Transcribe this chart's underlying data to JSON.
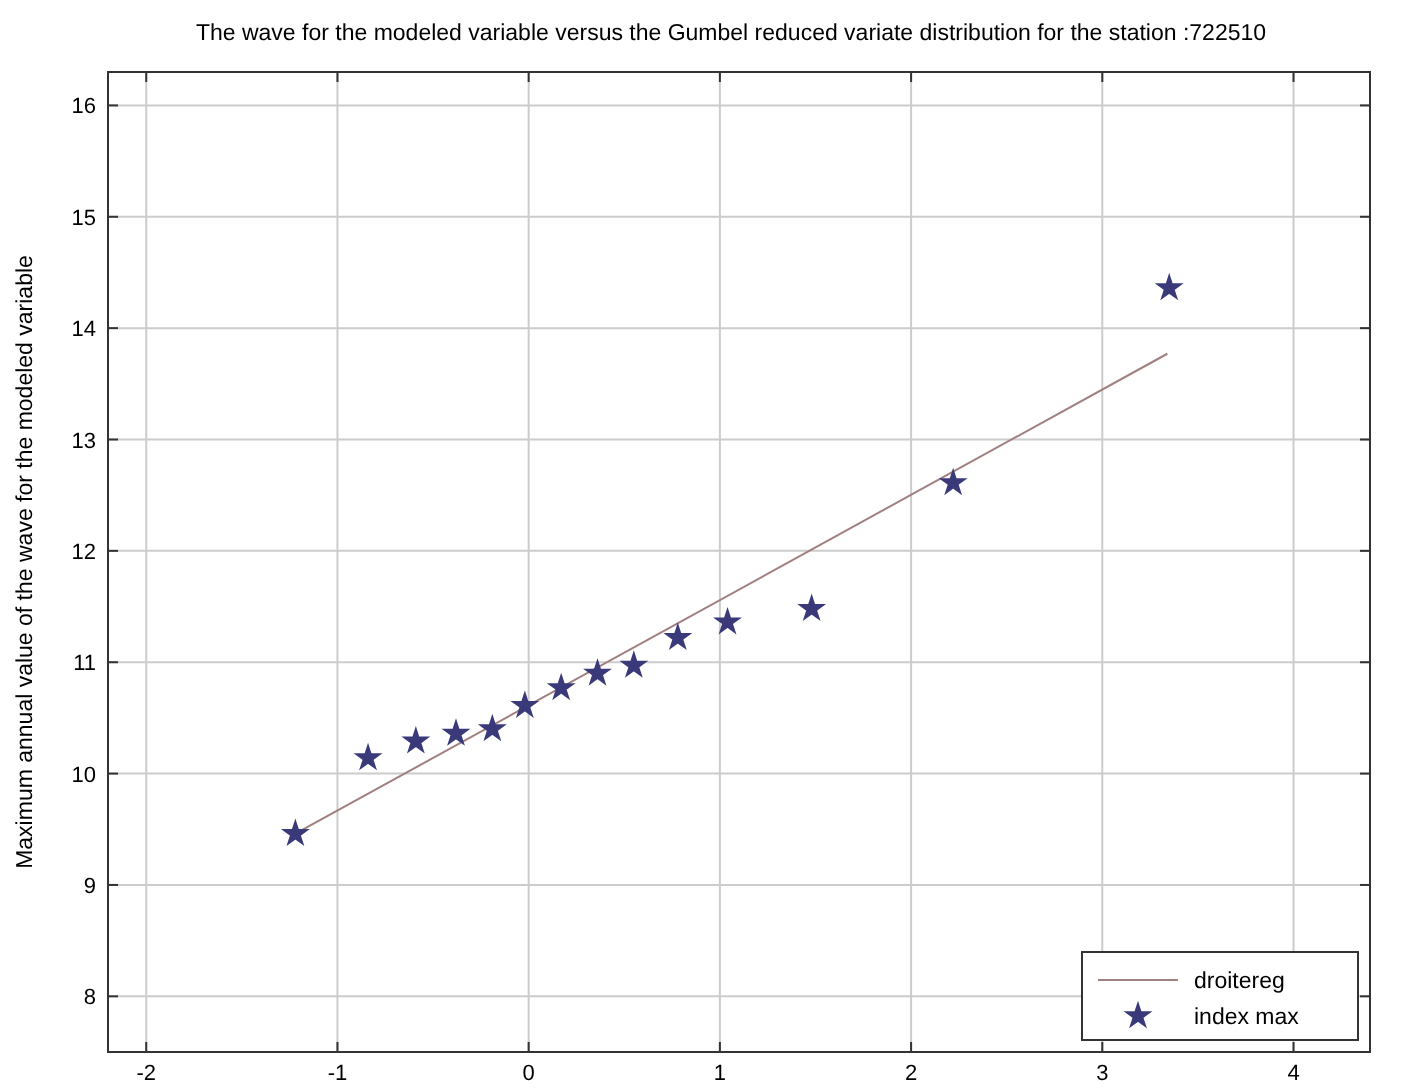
{
  "chart_data": {
    "type": "scatter",
    "title": "The wave for the modeled variable versus the Gumbel reduced variate distribution for the station :722510",
    "ylabel": "Maximum annual value of the wave for the modeled variable",
    "xlim": [
      -2.2,
      4.4
    ],
    "xticks": [
      -2,
      -1,
      0,
      1,
      2,
      3,
      4
    ],
    "ylim": [
      7.5,
      16.3
    ],
    "yticks": [
      8,
      9,
      10,
      11,
      12,
      13,
      14,
      15,
      16
    ],
    "grid": true,
    "legend": "bottom right",
    "series": [
      {
        "name": "droitereg",
        "type": "line",
        "color": "#a08080",
        "x": [
          -1.22,
          3.34
        ],
        "values": [
          9.46,
          13.77
        ],
        "marker": "none"
      },
      {
        "name": "index max",
        "type": "scatter",
        "color": "#3a3a7a",
        "marker": "star",
        "x": [
          -1.22,
          -0.84,
          -0.59,
          -0.38,
          -0.19,
          -0.02,
          0.17,
          0.36,
          0.55,
          0.78,
          1.04,
          1.48,
          2.22,
          3.35
        ],
        "values": [
          9.46,
          10.14,
          10.29,
          10.36,
          10.4,
          10.61,
          10.77,
          10.9,
          10.97,
          11.22,
          11.36,
          11.48,
          12.61,
          14.36
        ]
      }
    ]
  }
}
